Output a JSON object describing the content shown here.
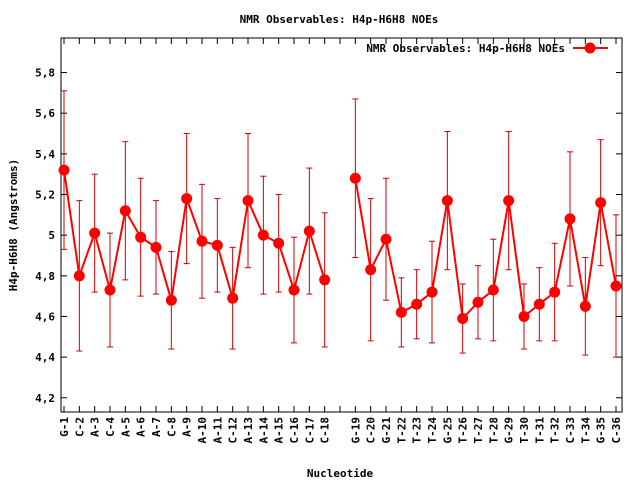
{
  "chart_data": {
    "type": "line",
    "title": "NMR Observables: H4p-H6H8 NOEs",
    "xlabel": "Nucleotide",
    "ylabel": "H4p-H6H8 (Angstroms)",
    "ylim": [
      4.13,
      5.97
    ],
    "y_ticks": [
      "4,2",
      "4,4",
      "4,6",
      "4,8",
      "5",
      "5,2",
      "5,4",
      "5,6",
      "5,8"
    ],
    "y_tick_values": [
      4.2,
      4.4,
      4.6,
      4.8,
      5.0,
      5.2,
      5.4,
      5.6,
      5.8
    ],
    "grid": false,
    "legend_position": "top-right",
    "colors": {
      "series": "#ff0000",
      "errorbar": "#cc0000",
      "axis": "#000000"
    },
    "categories": [
      "G-1",
      "C-2",
      "A-3",
      "C-4",
      "A-5",
      "A-6",
      "A-7",
      "C-8",
      "A-9",
      "A-10",
      "A-11",
      "C-12",
      "A-13",
      "A-14",
      "A-15",
      "C-16",
      "C-17",
      "C-18",
      "",
      "G-19",
      "C-20",
      "G-21",
      "T-22",
      "T-23",
      "T-24",
      "G-25",
      "T-26",
      "T-27",
      "T-28",
      "G-29",
      "T-30",
      "T-31",
      "T-32",
      "C-33",
      "T-34",
      "G-35",
      "C-36"
    ],
    "series": [
      {
        "name": "NMR Observables: H4p-H6H8 NOEs",
        "values": [
          5.32,
          4.8,
          5.01,
          4.73,
          5.12,
          4.99,
          4.94,
          4.68,
          5.18,
          4.97,
          4.95,
          4.69,
          5.17,
          5.0,
          4.96,
          4.73,
          5.02,
          4.78,
          null,
          5.28,
          4.83,
          4.98,
          4.62,
          4.66,
          4.72,
          5.17,
          4.59,
          4.67,
          4.73,
          5.17,
          4.6,
          4.66,
          4.72,
          5.08,
          4.65,
          5.16,
          4.75
        ],
        "errors": [
          0.39,
          0.37,
          0.29,
          0.28,
          0.34,
          0.29,
          0.23,
          0.24,
          0.32,
          0.28,
          0.23,
          0.25,
          0.33,
          0.29,
          0.24,
          0.26,
          0.31,
          0.33,
          null,
          0.39,
          0.35,
          0.3,
          0.17,
          0.17,
          0.25,
          0.34,
          0.17,
          0.18,
          0.25,
          0.34,
          0.16,
          0.18,
          0.24,
          0.33,
          0.24,
          0.31,
          0.35
        ]
      }
    ]
  }
}
